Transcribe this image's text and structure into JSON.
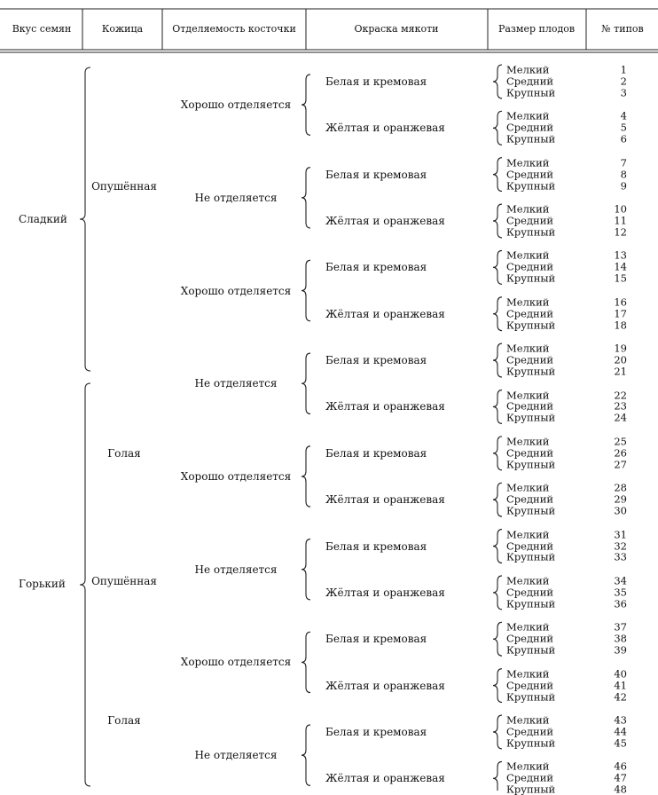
{
  "header": {
    "columns": [
      "Вкус семян",
      "Кожица",
      "Отделяемость косточки",
      "Окраска мякоти",
      "Размер плодов",
      "№ типов"
    ]
  },
  "taste": [
    "Сладкий",
    "Горький"
  ],
  "skin": [
    "Опушённая",
    "Голая"
  ],
  "separability": [
    "Хорошо отделяется",
    "Не отделяется"
  ],
  "flesh": [
    "Белая и кремовая",
    "Жёлтая и оранжевая"
  ],
  "sizes": [
    "Мелкий",
    "Средний",
    "Крупный"
  ],
  "type_numbers": [
    "1",
    "2",
    "3",
    "4",
    "5",
    "6",
    "7",
    "8",
    "9",
    "10",
    "11",
    "12",
    "13",
    "14",
    "15",
    "16",
    "17",
    "18",
    "19",
    "20",
    "21",
    "22",
    "23",
    "24",
    "25",
    "26",
    "27",
    "28",
    "29",
    "30",
    "31",
    "32",
    "33",
    "34",
    "35",
    "36",
    "37",
    "38",
    "39",
    "40",
    "41",
    "42",
    "43",
    "44",
    "45",
    "46",
    "47",
    "48"
  ]
}
